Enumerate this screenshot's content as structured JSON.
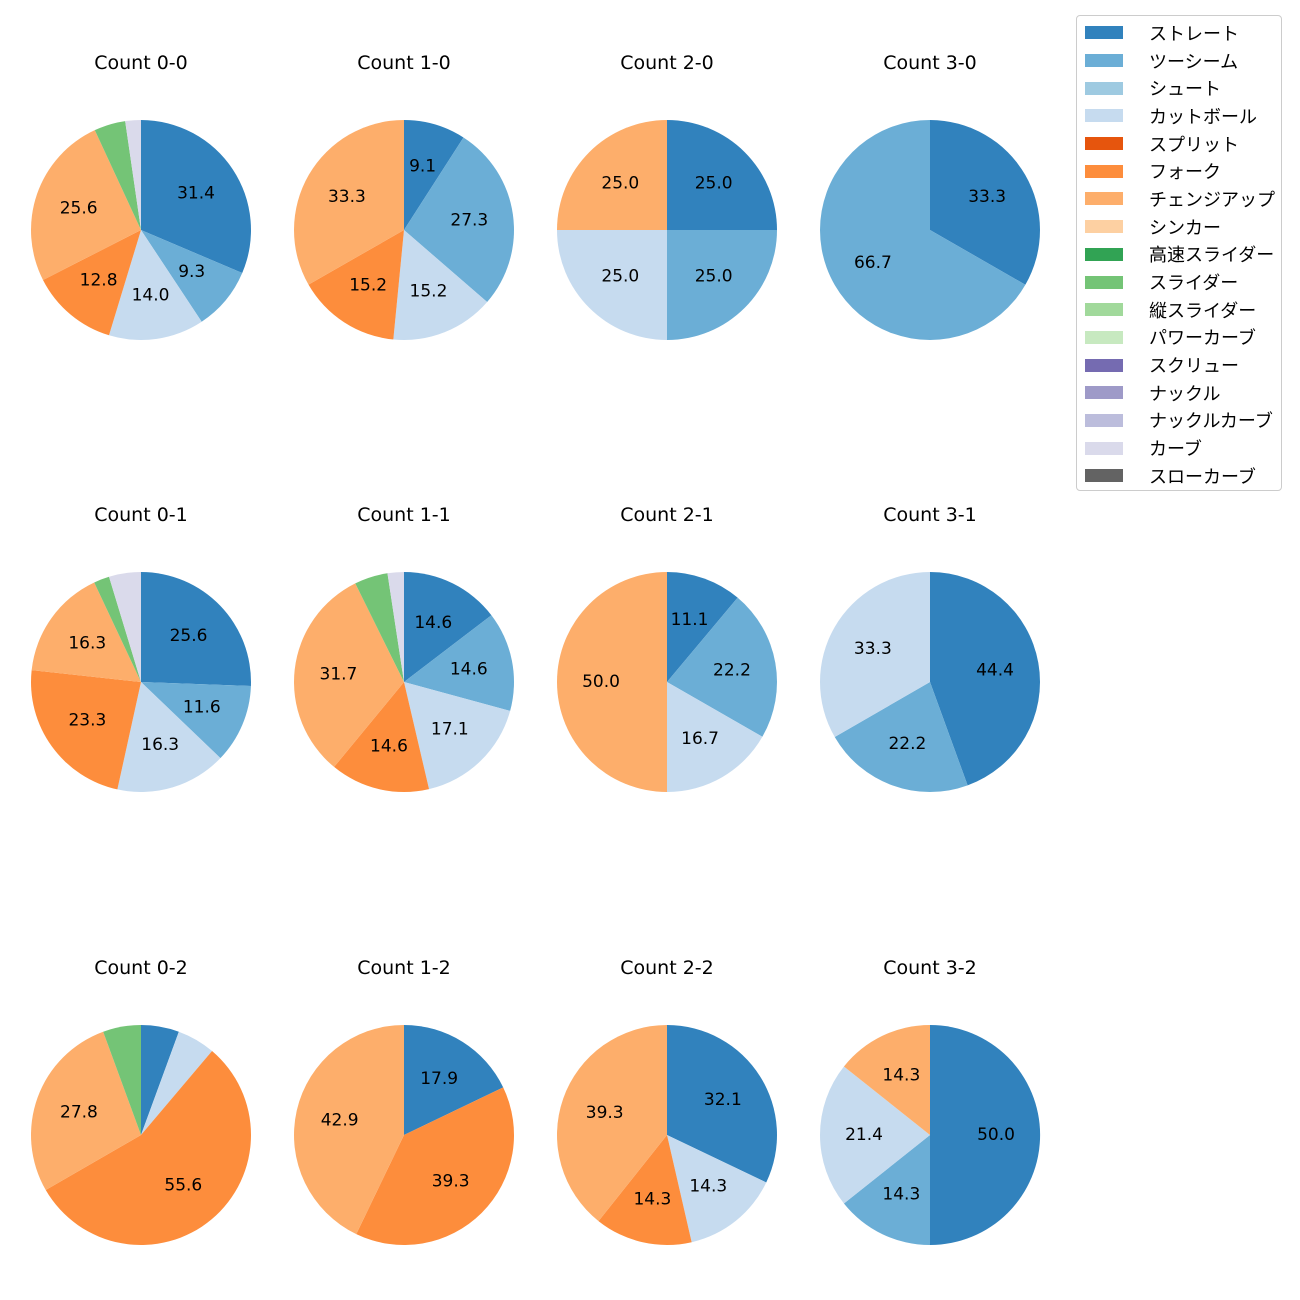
{
  "chart_data": {
    "type": "pie",
    "legend_position": "top-right",
    "categories": [
      {
        "name": "ストレート",
        "color": "#3182bd"
      },
      {
        "name": "ツーシーム",
        "color": "#6baed6"
      },
      {
        "name": "シュート",
        "color": "#9ecae1"
      },
      {
        "name": "カットボール",
        "color": "#c6dbef"
      },
      {
        "name": "スプリット",
        "color": "#e6550d"
      },
      {
        "name": "フォーク",
        "color": "#fd8d3c"
      },
      {
        "name": "チェンジアップ",
        "color": "#fdae6b"
      },
      {
        "name": "シンカー",
        "color": "#fdd0a2"
      },
      {
        "name": "高速スライダー",
        "color": "#31a354"
      },
      {
        "name": "スライダー",
        "color": "#74c476"
      },
      {
        "name": "縦スライダー",
        "color": "#a1d99b"
      },
      {
        "name": "パワーカーブ",
        "color": "#c7e9c0"
      },
      {
        "name": "スクリュー",
        "color": "#756bb1"
      },
      {
        "name": "ナックル",
        "color": "#9e9ac8"
      },
      {
        "name": "ナックルカーブ",
        "color": "#bcbddc"
      },
      {
        "name": "カーブ",
        "color": "#dadaeb"
      },
      {
        "name": "スローカーブ",
        "color": "#636363"
      }
    ],
    "pies": [
      {
        "title": "Count 0-0",
        "slices": [
          {
            "category": "ストレート",
            "value": 31.4,
            "label": "31.4"
          },
          {
            "category": "ツーシーム",
            "value": 9.3,
            "label": "9.3"
          },
          {
            "category": "カットボール",
            "value": 14.0,
            "label": "14.0"
          },
          {
            "category": "フォーク",
            "value": 12.8,
            "label": "12.8"
          },
          {
            "category": "チェンジアップ",
            "value": 25.6,
            "label": "25.6"
          },
          {
            "category": "スライダー",
            "value": 4.6,
            "label": ""
          },
          {
            "category": "カーブ",
            "value": 2.3,
            "label": ""
          }
        ]
      },
      {
        "title": "Count 1-0",
        "slices": [
          {
            "category": "ストレート",
            "value": 9.1,
            "label": "9.1"
          },
          {
            "category": "ツーシーム",
            "value": 27.3,
            "label": "27.3"
          },
          {
            "category": "カットボール",
            "value": 15.2,
            "label": "15.2"
          },
          {
            "category": "フォーク",
            "value": 15.2,
            "label": "15.2"
          },
          {
            "category": "チェンジアップ",
            "value": 33.3,
            "label": "33.3"
          }
        ]
      },
      {
        "title": "Count 2-0",
        "slices": [
          {
            "category": "ストレート",
            "value": 25.0,
            "label": "25.0"
          },
          {
            "category": "ツーシーム",
            "value": 25.0,
            "label": "25.0"
          },
          {
            "category": "カットボール",
            "value": 25.0,
            "label": "25.0"
          },
          {
            "category": "チェンジアップ",
            "value": 25.0,
            "label": "25.0"
          }
        ]
      },
      {
        "title": "Count 3-0",
        "slices": [
          {
            "category": "ストレート",
            "value": 33.3,
            "label": "33.3"
          },
          {
            "category": "ツーシーム",
            "value": 66.7,
            "label": "66.7"
          }
        ]
      },
      {
        "title": "Count 0-1",
        "slices": [
          {
            "category": "ストレート",
            "value": 25.6,
            "label": "25.6"
          },
          {
            "category": "ツーシーム",
            "value": 11.6,
            "label": "11.6"
          },
          {
            "category": "カットボール",
            "value": 16.3,
            "label": "16.3"
          },
          {
            "category": "フォーク",
            "value": 23.3,
            "label": "23.3"
          },
          {
            "category": "チェンジアップ",
            "value": 16.3,
            "label": "16.3"
          },
          {
            "category": "スライダー",
            "value": 2.3,
            "label": ""
          },
          {
            "category": "カーブ",
            "value": 4.7,
            "label": ""
          }
        ]
      },
      {
        "title": "Count 1-1",
        "slices": [
          {
            "category": "ストレート",
            "value": 14.6,
            "label": "14.6"
          },
          {
            "category": "ツーシーム",
            "value": 14.6,
            "label": "14.6"
          },
          {
            "category": "カットボール",
            "value": 17.1,
            "label": "17.1"
          },
          {
            "category": "フォーク",
            "value": 14.6,
            "label": "14.6"
          },
          {
            "category": "チェンジアップ",
            "value": 31.7,
            "label": "31.7"
          },
          {
            "category": "スライダー",
            "value": 4.9,
            "label": ""
          },
          {
            "category": "カーブ",
            "value": 2.4,
            "label": ""
          }
        ]
      },
      {
        "title": "Count 2-1",
        "slices": [
          {
            "category": "ストレート",
            "value": 11.1,
            "label": "11.1"
          },
          {
            "category": "ツーシーム",
            "value": 22.2,
            "label": "22.2"
          },
          {
            "category": "カットボール",
            "value": 16.7,
            "label": "16.7"
          },
          {
            "category": "チェンジアップ",
            "value": 50.0,
            "label": "50.0"
          }
        ]
      },
      {
        "title": "Count 3-1",
        "slices": [
          {
            "category": "ストレート",
            "value": 44.4,
            "label": "44.4"
          },
          {
            "category": "ツーシーム",
            "value": 22.2,
            "label": "22.2"
          },
          {
            "category": "カットボール",
            "value": 33.3,
            "label": "33.3"
          }
        ]
      },
      {
        "title": "Count 0-2",
        "slices": [
          {
            "category": "ストレート",
            "value": 5.6,
            "label": ""
          },
          {
            "category": "カットボール",
            "value": 5.6,
            "label": ""
          },
          {
            "category": "フォーク",
            "value": 55.6,
            "label": "55.6"
          },
          {
            "category": "チェンジアップ",
            "value": 27.8,
            "label": "27.8"
          },
          {
            "category": "スライダー",
            "value": 5.6,
            "label": ""
          }
        ]
      },
      {
        "title": "Count 1-2",
        "slices": [
          {
            "category": "ストレート",
            "value": 17.9,
            "label": "17.9"
          },
          {
            "category": "フォーク",
            "value": 39.3,
            "label": "39.3"
          },
          {
            "category": "チェンジアップ",
            "value": 42.9,
            "label": "42.9"
          }
        ]
      },
      {
        "title": "Count 2-2",
        "slices": [
          {
            "category": "ストレート",
            "value": 32.1,
            "label": "32.1"
          },
          {
            "category": "カットボール",
            "value": 14.3,
            "label": "14.3"
          },
          {
            "category": "フォーク",
            "value": 14.3,
            "label": "14.3"
          },
          {
            "category": "チェンジアップ",
            "value": 39.3,
            "label": "39.3"
          }
        ]
      },
      {
        "title": "Count 3-2",
        "slices": [
          {
            "category": "ストレート",
            "value": 50.0,
            "label": "50.0"
          },
          {
            "category": "ツーシーム",
            "value": 14.3,
            "label": "14.3"
          },
          {
            "category": "カットボール",
            "value": 21.4,
            "label": "21.4"
          },
          {
            "category": "チェンジアップ",
            "value": 14.3,
            "label": "14.3"
          }
        ]
      }
    ]
  }
}
